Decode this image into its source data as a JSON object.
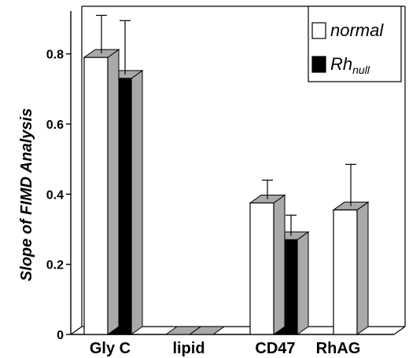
{
  "chart_data": {
    "type": "bar",
    "style": "3d",
    "ylabel": "Slope of FIMD Analysis",
    "xlabel": "",
    "ylim": [
      0,
      0.9
    ],
    "yticks": [
      "0",
      "0.2",
      "0.4",
      "0.6",
      "0.8"
    ],
    "ytick_values": [
      0,
      0.2,
      0.4,
      0.6,
      0.8
    ],
    "categories": [
      "Gly C",
      "lipid",
      "CD47",
      "RhAG"
    ],
    "series": [
      {
        "name": "normal",
        "color": "#ffffff",
        "values": [
          0.79,
          0.0,
          0.375,
          0.355
        ],
        "errors": [
          0.12,
          null,
          0.065,
          0.13
        ]
      },
      {
        "name_main": "Rh",
        "name_sub": "null",
        "color": "#000000",
        "values": [
          0.73,
          0.0,
          0.27,
          null
        ],
        "errors": [
          0.165,
          null,
          0.07,
          null
        ]
      }
    ],
    "legend_position": "top-right",
    "grid": false
  }
}
